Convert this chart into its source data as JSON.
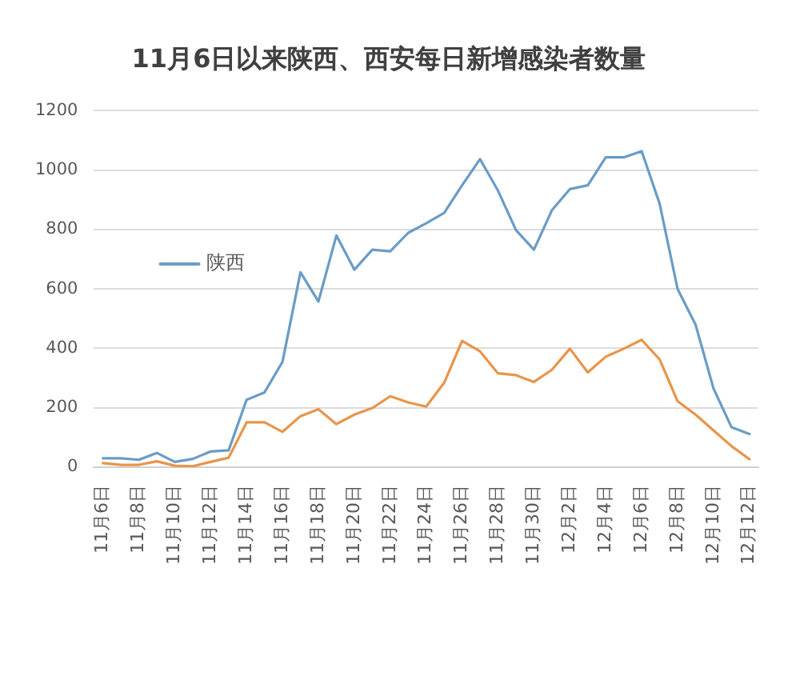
{
  "chart_data": {
    "type": "line",
    "title": "11月6日以来陕西、西安每日新增感染者数量",
    "categories": [
      "11月6日",
      null,
      "11月8日",
      null,
      "11月10日",
      null,
      "11月12日",
      null,
      "11月14日",
      null,
      "11月16日",
      null,
      "11月18日",
      null,
      "11月20日",
      null,
      "11月22日",
      null,
      "11月24日",
      null,
      "11月26日",
      null,
      "11月28日",
      null,
      "11月30日",
      null,
      "12月2日",
      null,
      "12月4日",
      null,
      "12月6日",
      null,
      "12月8日",
      null,
      "12月10日",
      null,
      "12月12日"
    ],
    "series": [
      {
        "name": "陕西",
        "color": "#6a9cc6",
        "values": [
          30,
          30,
          25,
          48,
          18,
          28,
          53,
          57,
          227,
          252,
          355,
          656,
          558,
          780,
          665,
          732,
          727,
          789,
          821,
          856,
          949,
          1037,
          931,
          798,
          732,
          865,
          936,
          949,
          1043,
          1043,
          1064,
          887,
          600,
          480,
          265,
          135,
          112
        ]
      },
      {
        "color": "#e8954a",
        "values": [
          14,
          8,
          8,
          20,
          5,
          3,
          18,
          32,
          151,
          151,
          119,
          172,
          195,
          145,
          177,
          199,
          239,
          218,
          204,
          284,
          425,
          390,
          316,
          310,
          287,
          328,
          399,
          319,
          372,
          399,
          429,
          363,
          222,
          177,
          124,
          71,
          27
        ]
      }
    ],
    "ylim": [
      0,
      1200
    ],
    "yticks": [
      0,
      200,
      400,
      600,
      800,
      1000,
      1200
    ],
    "grid": "y",
    "legend": "left",
    "marker": "none"
  }
}
